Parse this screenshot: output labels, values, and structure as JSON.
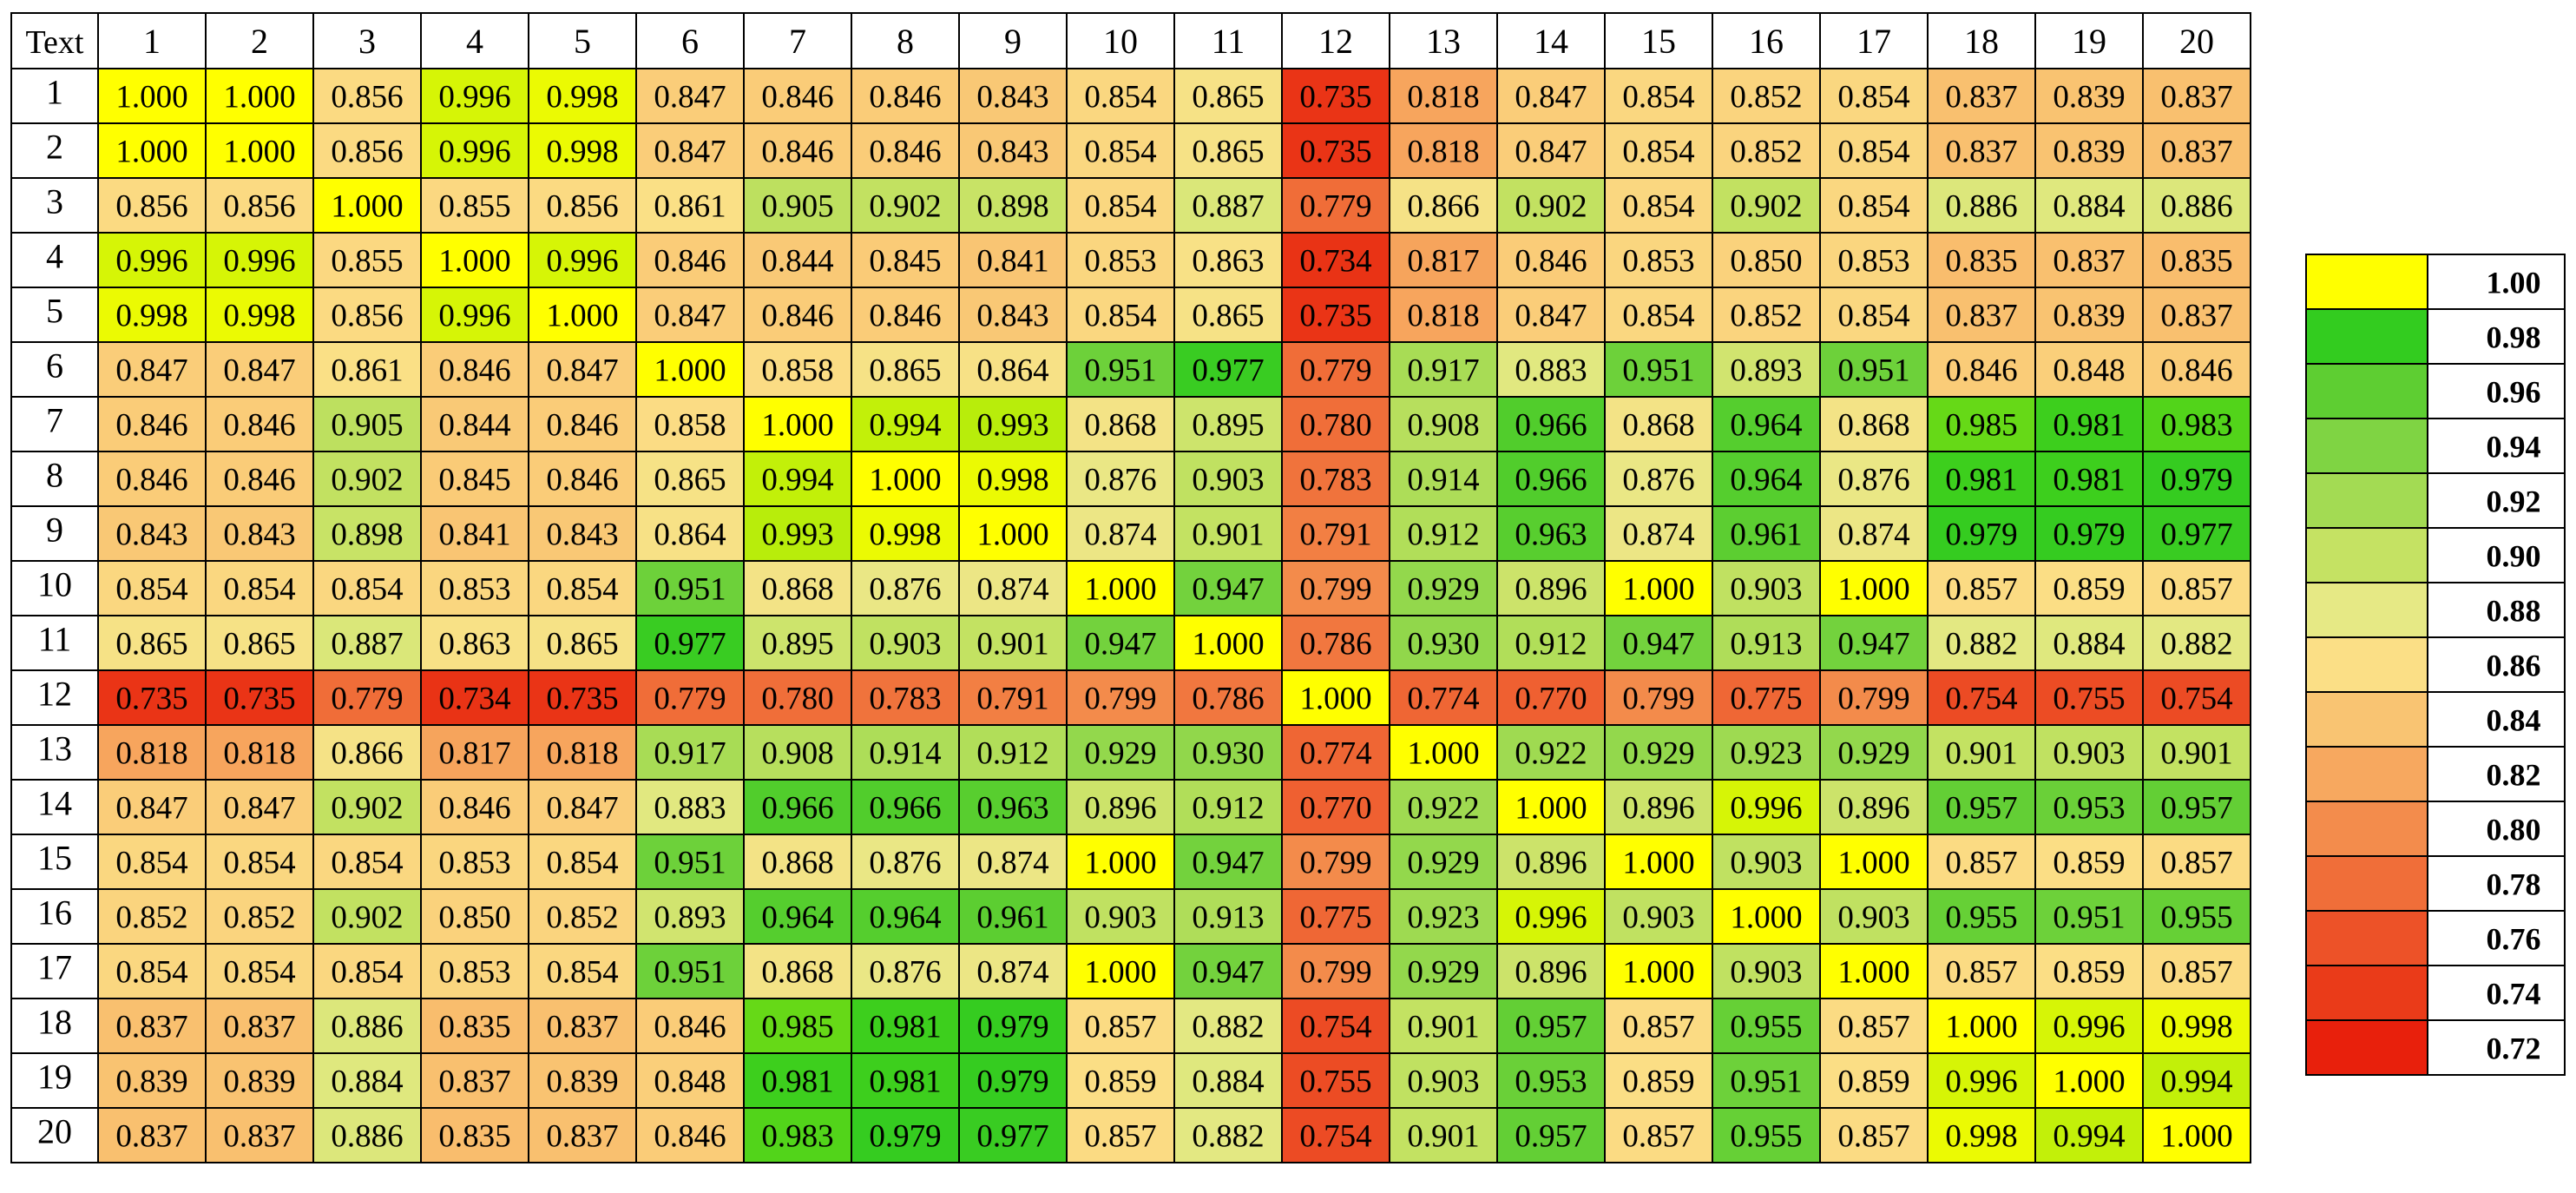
{
  "chart_data": {
    "type": "heatmap",
    "corner_label": "Text",
    "x": [
      "1",
      "2",
      "3",
      "4",
      "5",
      "6",
      "7",
      "8",
      "9",
      "10",
      "11",
      "12",
      "13",
      "14",
      "15",
      "16",
      "17",
      "18",
      "19",
      "20"
    ],
    "y": [
      "1",
      "2",
      "3",
      "4",
      "5",
      "6",
      "7",
      "8",
      "9",
      "10",
      "11",
      "12",
      "13",
      "14",
      "15",
      "16",
      "17",
      "18",
      "19",
      "20"
    ],
    "values": [
      [
        1.0,
        1.0,
        0.856,
        0.996,
        0.998,
        0.847,
        0.846,
        0.846,
        0.843,
        0.854,
        0.865,
        0.735,
        0.818,
        0.847,
        0.854,
        0.852,
        0.854,
        0.837,
        0.839,
        0.837
      ],
      [
        1.0,
        1.0,
        0.856,
        0.996,
        0.998,
        0.847,
        0.846,
        0.846,
        0.843,
        0.854,
        0.865,
        0.735,
        0.818,
        0.847,
        0.854,
        0.852,
        0.854,
        0.837,
        0.839,
        0.837
      ],
      [
        0.856,
        0.856,
        1.0,
        0.855,
        0.856,
        0.861,
        0.905,
        0.902,
        0.898,
        0.854,
        0.887,
        0.779,
        0.866,
        0.902,
        0.854,
        0.902,
        0.854,
        0.886,
        0.884,
        0.886
      ],
      [
        0.996,
        0.996,
        0.855,
        1.0,
        0.996,
        0.846,
        0.844,
        0.845,
        0.841,
        0.853,
        0.863,
        0.734,
        0.817,
        0.846,
        0.853,
        0.85,
        0.853,
        0.835,
        0.837,
        0.835
      ],
      [
        0.998,
        0.998,
        0.856,
        0.996,
        1.0,
        0.847,
        0.846,
        0.846,
        0.843,
        0.854,
        0.865,
        0.735,
        0.818,
        0.847,
        0.854,
        0.852,
        0.854,
        0.837,
        0.839,
        0.837
      ],
      [
        0.847,
        0.847,
        0.861,
        0.846,
        0.847,
        1.0,
        0.858,
        0.865,
        0.864,
        0.951,
        0.977,
        0.779,
        0.917,
        0.883,
        0.951,
        0.893,
        0.951,
        0.846,
        0.848,
        0.846
      ],
      [
        0.846,
        0.846,
        0.905,
        0.844,
        0.846,
        0.858,
        1.0,
        0.994,
        0.993,
        0.868,
        0.895,
        0.78,
        0.908,
        0.966,
        0.868,
        0.964,
        0.868,
        0.985,
        0.981,
        0.983
      ],
      [
        0.846,
        0.846,
        0.902,
        0.845,
        0.846,
        0.865,
        0.994,
        1.0,
        0.998,
        0.876,
        0.903,
        0.783,
        0.914,
        0.966,
        0.876,
        0.964,
        0.876,
        0.981,
        0.981,
        0.979
      ],
      [
        0.843,
        0.843,
        0.898,
        0.841,
        0.843,
        0.864,
        0.993,
        0.998,
        1.0,
        0.874,
        0.901,
        0.791,
        0.912,
        0.963,
        0.874,
        0.961,
        0.874,
        0.979,
        0.979,
        0.977
      ],
      [
        0.854,
        0.854,
        0.854,
        0.853,
        0.854,
        0.951,
        0.868,
        0.876,
        0.874,
        1.0,
        0.947,
        0.799,
        0.929,
        0.896,
        1.0,
        0.903,
        1.0,
        0.857,
        0.859,
        0.857
      ],
      [
        0.865,
        0.865,
        0.887,
        0.863,
        0.865,
        0.977,
        0.895,
        0.903,
        0.901,
        0.947,
        1.0,
        0.786,
        0.93,
        0.912,
        0.947,
        0.913,
        0.947,
        0.882,
        0.884,
        0.882
      ],
      [
        0.735,
        0.735,
        0.779,
        0.734,
        0.735,
        0.779,
        0.78,
        0.783,
        0.791,
        0.799,
        0.786,
        1.0,
        0.774,
        0.77,
        0.799,
        0.775,
        0.799,
        0.754,
        0.755,
        0.754
      ],
      [
        0.818,
        0.818,
        0.866,
        0.817,
        0.818,
        0.917,
        0.908,
        0.914,
        0.912,
        0.929,
        0.93,
        0.774,
        1.0,
        0.922,
        0.929,
        0.923,
        0.929,
        0.901,
        0.903,
        0.901
      ],
      [
        0.847,
        0.847,
        0.902,
        0.846,
        0.847,
        0.883,
        0.966,
        0.966,
        0.963,
        0.896,
        0.912,
        0.77,
        0.922,
        1.0,
        0.896,
        0.996,
        0.896,
        0.957,
        0.953,
        0.957
      ],
      [
        0.854,
        0.854,
        0.854,
        0.853,
        0.854,
        0.951,
        0.868,
        0.876,
        0.874,
        1.0,
        0.947,
        0.799,
        0.929,
        0.896,
        1.0,
        0.903,
        1.0,
        0.857,
        0.859,
        0.857
      ],
      [
        0.852,
        0.852,
        0.902,
        0.85,
        0.852,
        0.893,
        0.964,
        0.964,
        0.961,
        0.903,
        0.913,
        0.775,
        0.923,
        0.996,
        0.903,
        1.0,
        0.903,
        0.955,
        0.951,
        0.955
      ],
      [
        0.854,
        0.854,
        0.854,
        0.853,
        0.854,
        0.951,
        0.868,
        0.876,
        0.874,
        1.0,
        0.947,
        0.799,
        0.929,
        0.896,
        1.0,
        0.903,
        1.0,
        0.857,
        0.859,
        0.857
      ],
      [
        0.837,
        0.837,
        0.886,
        0.835,
        0.837,
        0.846,
        0.985,
        0.981,
        0.979,
        0.857,
        0.882,
        0.754,
        0.901,
        0.957,
        0.857,
        0.955,
        0.857,
        1.0,
        0.996,
        0.998
      ],
      [
        0.839,
        0.839,
        0.884,
        0.837,
        0.839,
        0.848,
        0.981,
        0.981,
        0.979,
        0.859,
        0.884,
        0.755,
        0.903,
        0.953,
        0.859,
        0.951,
        0.859,
        0.996,
        1.0,
        0.994
      ],
      [
        0.837,
        0.837,
        0.886,
        0.835,
        0.837,
        0.846,
        0.983,
        0.979,
        0.977,
        0.857,
        0.882,
        0.754,
        0.901,
        0.957,
        0.857,
        0.955,
        0.857,
        0.998,
        0.994,
        1.0
      ]
    ],
    "legend": [
      {
        "label": "1.00",
        "color": "#ffff00"
      },
      {
        "label": "0.98",
        "color": "#33cc1f"
      },
      {
        "label": "0.96",
        "color": "#5ece32"
      },
      {
        "label": "0.94",
        "color": "#7fd443"
      },
      {
        "label": "0.92",
        "color": "#a3db53"
      },
      {
        "label": "0.90",
        "color": "#c5e263"
      },
      {
        "label": "0.88",
        "color": "#e6e985"
      },
      {
        "label": "0.86",
        "color": "#fbdf86"
      },
      {
        "label": "0.84",
        "color": "#f9c472"
      },
      {
        "label": "0.82",
        "color": "#f7a85f"
      },
      {
        "label": "0.80",
        "color": "#f38c4c"
      },
      {
        "label": "0.78",
        "color": "#f06e39"
      },
      {
        "label": "0.76",
        "color": "#ed5228"
      },
      {
        "label": "0.74",
        "color": "#ea3b19"
      },
      {
        "label": "0.72",
        "color": "#e8200c"
      }
    ],
    "legend_placement": "right"
  }
}
